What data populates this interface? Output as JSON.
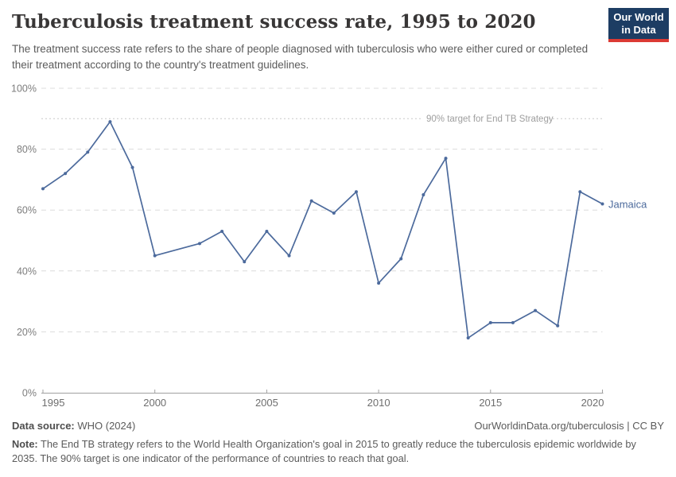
{
  "header": {
    "title": "Tuberculosis treatment success rate, 1995 to 2020",
    "subtitle": "The treatment success rate refers to the share of people diagnosed with tuberculosis who were either cured or completed their treatment according to the country's treatment guidelines.",
    "logo": {
      "line1": "Our World",
      "line2": "in Data"
    }
  },
  "chart_data": {
    "type": "line",
    "title": "Tuberculosis treatment success rate, 1995 to 2020",
    "xlabel": "",
    "ylabel": "",
    "xlim": [
      1995,
      2020
    ],
    "ylim": [
      0,
      100
    ],
    "grid": "horizontal-dashed",
    "xticks": [
      1995,
      2000,
      2005,
      2010,
      2015,
      2020
    ],
    "xtick_labels": [
      "1995",
      "2000",
      "2005",
      "2010",
      "2015",
      "2020"
    ],
    "yticks": [
      0,
      20,
      40,
      60,
      80,
      100
    ],
    "ytick_labels": [
      "0%",
      "20%",
      "40%",
      "60%",
      "80%",
      "100%"
    ],
    "annotation": {
      "text": "90% target for End TB Strategy",
      "y": 90
    },
    "series": [
      {
        "name": "Jamaica",
        "color": "#4c6a9c",
        "years": [
          1995,
          1996,
          1997,
          1998,
          1999,
          2000,
          2001,
          2002,
          2003,
          2004,
          2005,
          2006,
          2007,
          2008,
          2009,
          2010,
          2011,
          2012,
          2013,
          2014,
          2015,
          2016,
          2017,
          2018,
          2019,
          2020
        ],
        "values": [
          67,
          72,
          79,
          89,
          74,
          45,
          null,
          49,
          53,
          43,
          53,
          45,
          63,
          59,
          66,
          36,
          44,
          65,
          77,
          18,
          23,
          23,
          27,
          22,
          66,
          62
        ]
      }
    ],
    "legend_position": "end-of-line-label"
  },
  "footer": {
    "datasource_label": "Data source:",
    "datasource_value": " WHO (2024)",
    "attribution": "OurWorldinData.org/tuberculosis | CC BY",
    "note_label": "Note:",
    "note_text": " The End TB strategy refers to the World Health Organization's goal in 2015 to greatly reduce the tuberculosis epidemic worldwide by 2035. The 90% target is one indicator of the performance of countries to reach that goal."
  },
  "colors": {
    "line": "#4c6a9c",
    "grid": "#dcdcdc",
    "axis": "#a0a0a0",
    "tick_label": "#6e6e6e",
    "ytick_label": "#7d7d7d",
    "annotation": "#9e9e9e",
    "annotation_line": "#c8c8c8",
    "logo_bg": "#1d3d63",
    "logo_accent": "#dc3a34"
  }
}
